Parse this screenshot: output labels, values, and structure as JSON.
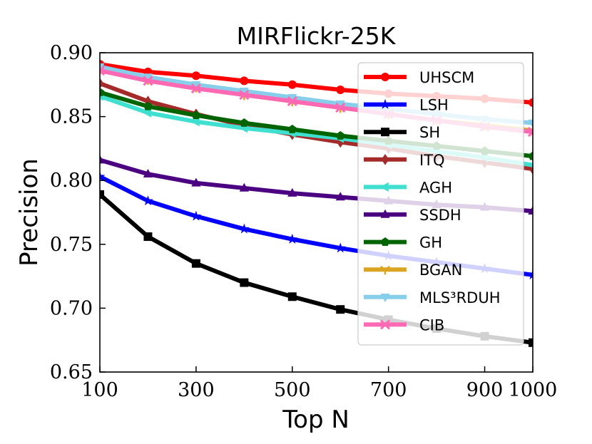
{
  "chart_data": {
    "type": "line",
    "title": "MIRFlickr-25K",
    "xlabel": "Top N",
    "ylabel": "Precision",
    "xlim": [
      100,
      1000
    ],
    "ylim": [
      0.65,
      0.9
    ],
    "xticks": [
      100,
      300,
      500,
      700,
      900,
      1000
    ],
    "xtick_labels": [
      "100",
      "300",
      "500",
      "700",
      "900",
      "1000"
    ],
    "yticks": [
      0.65,
      0.7,
      0.75,
      0.8,
      0.85,
      0.9
    ],
    "ytick_labels": [
      "0.65",
      "0.70",
      "0.75",
      "0.80",
      "0.85",
      "0.90"
    ],
    "legend_position": "top-right",
    "x": [
      100,
      200,
      300,
      400,
      500,
      600,
      700,
      800,
      900,
      1000
    ],
    "series": [
      {
        "name": "UHSCM",
        "color": "#ff0000",
        "marker": "circle",
        "values": [
          0.891,
          0.885,
          0.882,
          0.878,
          0.875,
          0.871,
          0.868,
          0.866,
          0.864,
          0.861
        ]
      },
      {
        "name": "LSH",
        "color": "#0000ff",
        "marker": "star",
        "values": [
          0.803,
          0.784,
          0.772,
          0.762,
          0.754,
          0.747,
          0.741,
          0.736,
          0.731,
          0.726
        ]
      },
      {
        "name": "SH",
        "color": "#000000",
        "marker": "square",
        "values": [
          0.789,
          0.756,
          0.735,
          0.72,
          0.709,
          0.699,
          0.691,
          0.684,
          0.678,
          0.673
        ]
      },
      {
        "name": "ITQ",
        "color": "#a52a2a",
        "marker": "diamond",
        "values": [
          0.876,
          0.862,
          0.852,
          0.843,
          0.836,
          0.83,
          0.825,
          0.819,
          0.814,
          0.809
        ]
      },
      {
        "name": "AGH",
        "color": "#40e0d0",
        "marker": "triangle-left",
        "values": [
          0.866,
          0.853,
          0.846,
          0.841,
          0.837,
          0.833,
          0.828,
          0.823,
          0.818,
          0.812
        ]
      },
      {
        "name": "SSDH",
        "color": "#4b0082",
        "marker": "triangle-up",
        "values": [
          0.816,
          0.805,
          0.798,
          0.794,
          0.79,
          0.787,
          0.784,
          0.781,
          0.779,
          0.776
        ]
      },
      {
        "name": "GH",
        "color": "#006400",
        "marker": "pentagon",
        "values": [
          0.869,
          0.858,
          0.851,
          0.845,
          0.84,
          0.835,
          0.831,
          0.827,
          0.823,
          0.819
        ]
      },
      {
        "name": "BGAN",
        "color": "#daa520",
        "marker": "tri-down",
        "values": [
          0.887,
          0.879,
          0.873,
          0.867,
          0.862,
          0.857,
          0.852,
          0.847,
          0.843,
          0.839
        ]
      },
      {
        "name": "MLS³RDUH",
        "color": "#87ceeb",
        "marker": "triangle-down",
        "values": [
          0.889,
          0.881,
          0.875,
          0.87,
          0.865,
          0.86,
          0.856,
          0.852,
          0.848,
          0.845
        ]
      },
      {
        "name": "CIB",
        "color": "#ff69b4",
        "marker": "x",
        "values": [
          0.886,
          0.878,
          0.872,
          0.867,
          0.862,
          0.857,
          0.852,
          0.847,
          0.842,
          0.838
        ]
      }
    ]
  }
}
